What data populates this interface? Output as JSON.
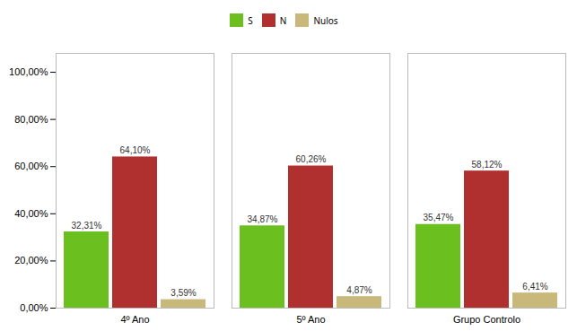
{
  "chart_data": {
    "type": "bar",
    "categories": [
      "4º Ano",
      "5º Ano",
      "Grupo Controlo"
    ],
    "series": [
      {
        "name": "S",
        "color": "#6BBF1E",
        "values": [
          32.31,
          34.87,
          35.47
        ],
        "value_labels": [
          "32,31%",
          "34,87%",
          "35,47%"
        ]
      },
      {
        "name": "N",
        "color": "#B03030",
        "values": [
          64.1,
          60.26,
          58.12
        ],
        "value_labels": [
          "64,10%",
          "60,26%",
          "58,12%"
        ]
      },
      {
        "name": "Nulos",
        "color": "#C8B87A",
        "values": [
          3.59,
          4.87,
          6.41
        ],
        "value_labels": [
          "3,59%",
          "4,87%",
          "6,41%"
        ]
      }
    ],
    "ylim": [
      0,
      108
    ],
    "yticks": [
      {
        "value": 0,
        "label": "0,00%"
      },
      {
        "value": 20,
        "label": "20,00%"
      },
      {
        "value": 40,
        "label": "40,00%"
      },
      {
        "value": 60,
        "label": "60,00%"
      },
      {
        "value": 80,
        "label": "80,00%"
      },
      {
        "value": 100,
        "label": "100,00%"
      }
    ],
    "legend": "top",
    "grid": false,
    "data_labels": true
  }
}
